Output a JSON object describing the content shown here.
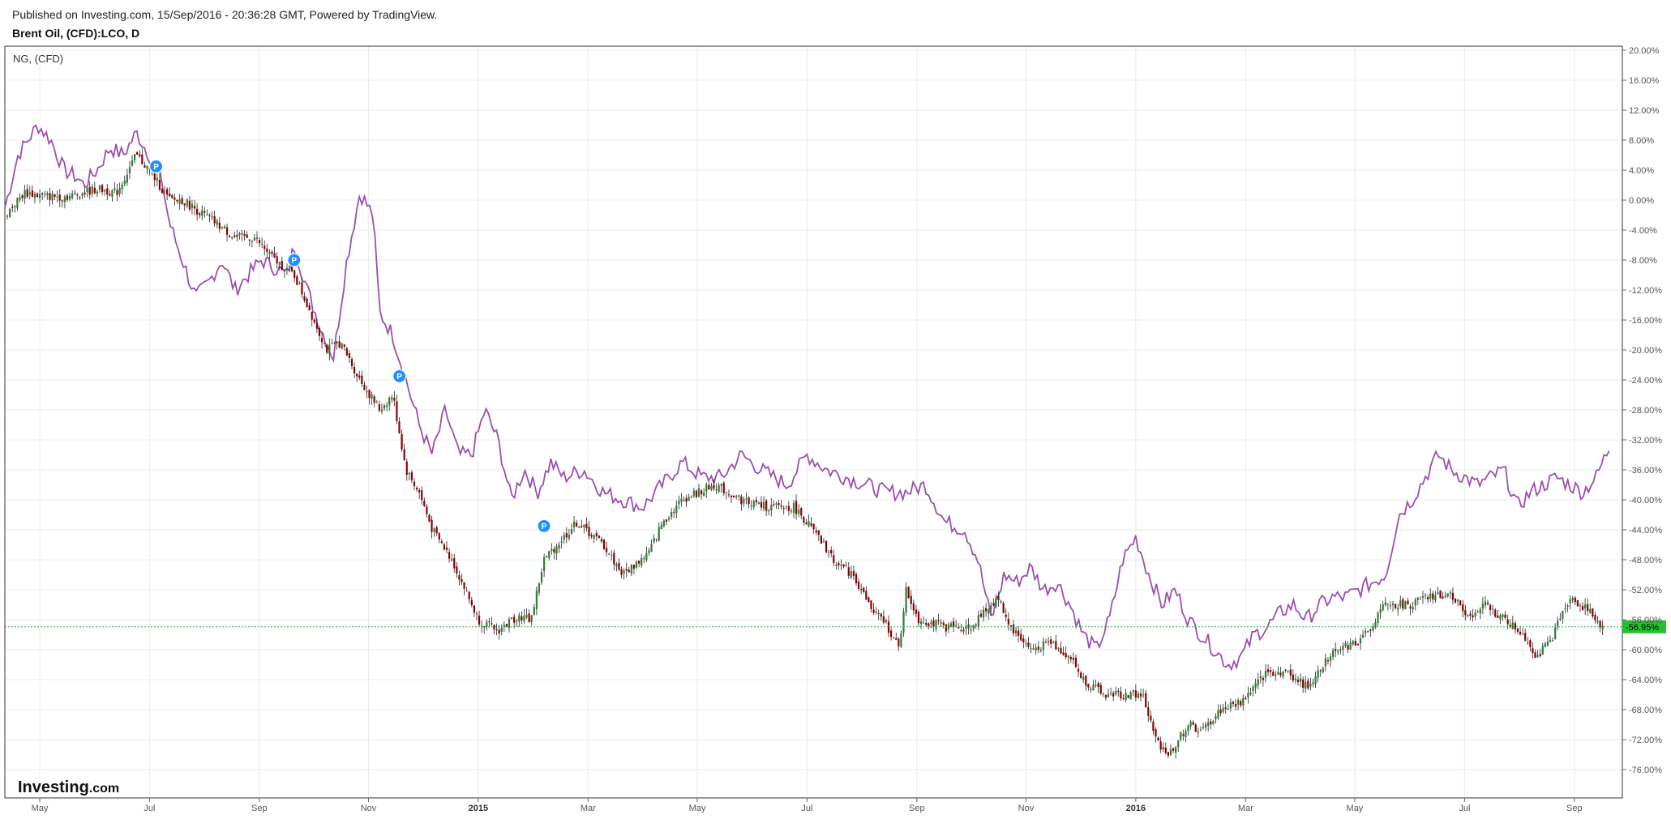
{
  "header": {
    "published": "Published on Investing.com, 15/Sep/2016 - 20:36:28 GMT, Powered by TradingView.",
    "symbol": "Brent Oil, (CFD):LCO, D"
  },
  "legend": {
    "compare_label": "NG,  (CFD)"
  },
  "logo": {
    "main": "Investing",
    "sub": ".com"
  },
  "colors": {
    "up": "#2e7d32",
    "down": "#8b0000",
    "compare": "#9b4fb0",
    "marker": "#1e90ff",
    "price_tag": "#22c32e",
    "grid": "#ececec",
    "last_line": "#22b14c"
  },
  "chart_data": {
    "type": "line",
    "title": "Brent Oil, (CFD):LCO, D",
    "xlabel": "",
    "ylabel": "",
    "y_unit": "%",
    "ylim": [
      -78,
      21
    ],
    "yticks": [
      20,
      16,
      12,
      8,
      4,
      0,
      -4,
      -8,
      -12,
      -16,
      -20,
      -24,
      -28,
      -32,
      -36,
      -40,
      -44,
      -48,
      -52,
      -56,
      -60,
      -64,
      -68,
      -72,
      -76
    ],
    "x_range": [
      2014.28,
      2016.74
    ],
    "xticks": [
      {
        "label": "May",
        "x": 2014.333,
        "year": false
      },
      {
        "label": "Jul",
        "x": 2014.5,
        "year": false
      },
      {
        "label": "Sep",
        "x": 2014.667,
        "year": false
      },
      {
        "label": "Nov",
        "x": 2014.833,
        "year": false
      },
      {
        "label": "2015",
        "x": 2015.0,
        "year": true
      },
      {
        "label": "Mar",
        "x": 2015.167,
        "year": false
      },
      {
        "label": "May",
        "x": 2015.333,
        "year": false
      },
      {
        "label": "Jul",
        "x": 2015.5,
        "year": false
      },
      {
        "label": "Sep",
        "x": 2015.667,
        "year": false
      },
      {
        "label": "Nov",
        "x": 2015.833,
        "year": false
      },
      {
        "label": "2016",
        "x": 2016.0,
        "year": true
      },
      {
        "label": "Mar",
        "x": 2016.167,
        "year": false
      },
      {
        "label": "May",
        "x": 2016.333,
        "year": false
      },
      {
        "label": "Jul",
        "x": 2016.5,
        "year": false
      },
      {
        "label": "Sep",
        "x": 2016.667,
        "year": false
      }
    ],
    "last_value_label": "-56.95%",
    "last_value": -56.95,
    "grid": true,
    "series": [
      {
        "name": "Brent Oil, (CFD):LCO, D",
        "style": "candles",
        "x": [
          2014.28,
          2014.31,
          2014.34,
          2014.38,
          2014.42,
          2014.45,
          2014.48,
          2014.5,
          2014.53,
          2014.55,
          2014.6,
          2014.63,
          2014.66,
          2014.69,
          2014.72,
          2014.74,
          2014.77,
          2014.79,
          2014.82,
          2014.85,
          2014.87,
          2014.89,
          2014.91,
          2014.93,
          2014.96,
          2014.98,
          2015.0,
          2015.03,
          2015.06,
          2015.08,
          2015.1,
          2015.12,
          2015.15,
          2015.19,
          2015.22,
          2015.26,
          2015.28,
          2015.31,
          2015.36,
          2015.4,
          2015.44,
          2015.48,
          2015.5,
          2015.54,
          2015.57,
          2015.6,
          2015.62,
          2015.64,
          2015.65,
          2015.67,
          2015.71,
          2015.75,
          2015.79,
          2015.81,
          2015.84,
          2015.87,
          2015.9,
          2015.92,
          2015.95,
          2015.98,
          2016.01,
          2016.03,
          2016.05,
          2016.08,
          2016.1,
          2016.13,
          2016.16,
          2016.2,
          2016.23,
          2016.26,
          2016.3,
          2016.34,
          2016.38,
          2016.42,
          2016.45,
          2016.48,
          2016.51,
          2016.53,
          2016.56,
          2016.59,
          2016.61,
          2016.63,
          2016.66,
          2016.69,
          2016.71
        ],
        "values": [
          -2,
          1,
          0.5,
          0.5,
          1.5,
          1,
          6,
          4,
          0,
          0,
          -3,
          -5,
          -5,
          -8,
          -10,
          -14,
          -20,
          -19,
          -24,
          -28,
          -26,
          -36,
          -39,
          -44,
          -48,
          -52,
          -56,
          -57.5,
          -55.5,
          -56,
          -48,
          -46,
          -43,
          -46,
          -50,
          -47,
          -43,
          -40,
          -38,
          -40,
          -41,
          -41,
          -43,
          -48,
          -50,
          -55,
          -56.5,
          -60,
          -52,
          -56,
          -57,
          -57,
          -53,
          -57,
          -60,
          -59,
          -61,
          -64,
          -66,
          -66,
          -66,
          -72,
          -74,
          -70,
          -71,
          -68,
          -67,
          -63,
          -63,
          -65,
          -60,
          -59,
          -54,
          -54,
          -53,
          -52.5,
          -56,
          -54,
          -56,
          -58,
          -61,
          -59,
          -53,
          -55,
          -57
        ]
      },
      {
        "name": "NG,  (CFD)",
        "style": "line",
        "x": [
          2014.28,
          2014.3,
          2014.33,
          2014.35,
          2014.37,
          2014.39,
          2014.4,
          2014.42,
          2014.44,
          2014.46,
          2014.48,
          2014.5,
          2014.52,
          2014.53,
          2014.55,
          2014.57,
          2014.59,
          2014.61,
          2014.63,
          2014.65,
          2014.67,
          2014.69,
          2014.71,
          2014.72,
          2014.74,
          2014.76,
          2014.78,
          2014.8,
          2014.82,
          2014.84,
          2014.85,
          2014.87,
          2014.89,
          2014.91,
          2014.93,
          2014.95,
          2014.97,
          2014.99,
          2015.01,
          2015.03,
          2015.05,
          2015.07,
          2015.09,
          2015.11,
          2015.13,
          2015.16,
          2015.19,
          2015.22,
          2015.25,
          2015.28,
          2015.31,
          2015.34,
          2015.37,
          2015.4,
          2015.43,
          2015.47,
          2015.5,
          2015.53,
          2015.56,
          2015.59,
          2015.62,
          2015.65,
          2015.68,
          2015.71,
          2015.74,
          2015.76,
          2015.78,
          2015.8,
          2015.82,
          2015.84,
          2015.86,
          2015.88,
          2015.9,
          2015.92,
          2015.94,
          2015.96,
          2015.98,
          2016.0,
          2016.02,
          2016.04,
          2016.06,
          2016.08,
          2016.1,
          2016.12,
          2016.14,
          2016.16,
          2016.18,
          2016.2,
          2016.22,
          2016.24,
          2016.26,
          2016.28,
          2016.3,
          2016.32,
          2016.34,
          2016.36,
          2016.38,
          2016.4,
          2016.42,
          2016.44,
          2016.46,
          2016.48,
          2016.5,
          2016.52,
          2016.54,
          2016.56,
          2016.58,
          2016.6,
          2016.62,
          2016.64,
          2016.66,
          2016.68,
          2016.7,
          2016.72
        ],
        "values": [
          -1,
          6,
          10,
          8,
          4,
          3,
          2,
          4,
          7,
          6,
          9,
          6,
          2,
          -3,
          -8,
          -13,
          -11,
          -8,
          -12,
          -10,
          -8,
          -9,
          -10,
          -6,
          -12,
          -17,
          -21,
          -8,
          1,
          -2,
          -15,
          -18,
          -24,
          -30,
          -34,
          -28,
          -34,
          -34,
          -28,
          -32,
          -40,
          -36,
          -39,
          -35,
          -37,
          -36,
          -39,
          -40,
          -41,
          -38,
          -35,
          -37,
          -37,
          -34,
          -36,
          -38,
          -34,
          -36,
          -37,
          -38,
          -39,
          -39,
          -38,
          -43,
          -44,
          -48,
          -56,
          -50,
          -51,
          -49,
          -52,
          -51,
          -54,
          -58,
          -60,
          -56,
          -48,
          -45,
          -50,
          -54,
          -52,
          -56,
          -58,
          -60,
          -62,
          -61,
          -58,
          -57,
          -55,
          -54,
          -56,
          -54,
          -53,
          -53,
          -52,
          -51,
          -50,
          -42,
          -40,
          -37,
          -34,
          -36,
          -37,
          -38,
          -37,
          -36,
          -41,
          -39,
          -38,
          -37,
          -38,
          -39,
          -37,
          -33
        ]
      }
    ],
    "markers": [
      {
        "label": "P",
        "x": 2014.51,
        "y": 4.5
      },
      {
        "label": "P",
        "x": 2014.72,
        "y": -8
      },
      {
        "label": "P",
        "x": 2014.88,
        "y": -23.5
      },
      {
        "label": "P",
        "x": 2015.1,
        "y": -43.5
      }
    ]
  }
}
